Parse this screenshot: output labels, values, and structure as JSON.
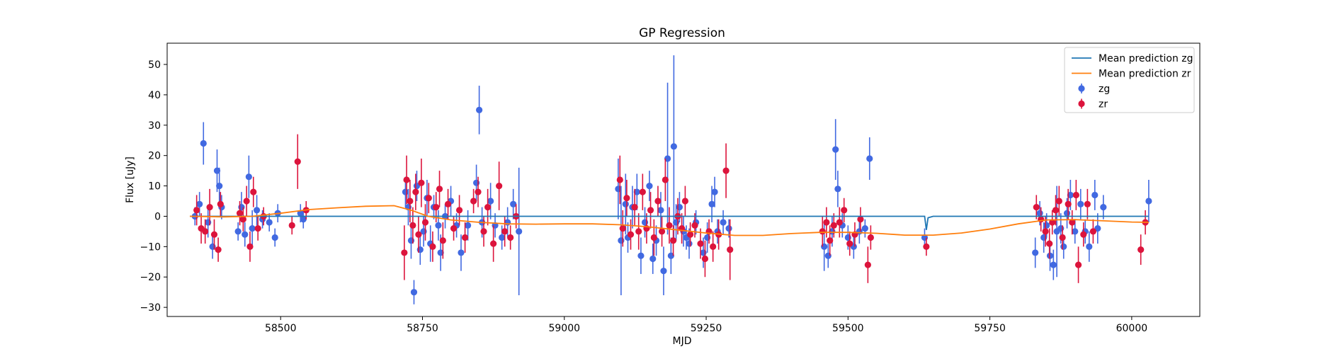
{
  "chart_data": {
    "type": "scatter",
    "title": "GP Regression",
    "xlabel": "MJD",
    "ylabel": "Flux [uJy]",
    "xlim": [
      58300,
      60120
    ],
    "ylim": [
      -33,
      57
    ],
    "x_ticks": [
      58500,
      58750,
      59000,
      59250,
      59500,
      59750,
      60000
    ],
    "y_ticks": [
      -30,
      -20,
      -10,
      0,
      10,
      20,
      30,
      40,
      50
    ],
    "grid": false,
    "legend_position": "top-right",
    "legend": [
      {
        "label": "Mean prediction zg",
        "kind": "line",
        "color": "#1f77b4"
      },
      {
        "label": "Mean prediction zr",
        "kind": "line",
        "color": "#ff7f0e"
      },
      {
        "label": "zg",
        "kind": "errorbar",
        "color": "#4169e1"
      },
      {
        "label": "zr",
        "kind": "errorbar",
        "color": "#dc143c"
      }
    ],
    "lines": [
      {
        "name": "Mean prediction zg",
        "color": "#1f77b4",
        "x": [
          58340,
          58540,
          58550,
          58760,
          59620,
          59635,
          59638,
          59641,
          59650,
          60030
        ],
        "y": [
          0,
          0,
          0,
          0,
          0,
          0,
          -4.5,
          -0.5,
          0,
          0
        ]
      },
      {
        "name": "Mean prediction zr",
        "color": "#ff7f0e",
        "x": [
          58340,
          58400,
          58450,
          58500,
          58550,
          58600,
          58650,
          58700,
          58730,
          58760,
          58800,
          58850,
          58900,
          58950,
          59000,
          59050,
          59100,
          59150,
          59200,
          59250,
          59300,
          59350,
          59400,
          59450,
          59500,
          59550,
          59600,
          59650,
          59700,
          59750,
          59800,
          59850,
          59900,
          59950,
          60000,
          60030
        ],
        "y": [
          0.0,
          -0.2,
          0.0,
          1.0,
          2.2,
          2.8,
          3.3,
          3.5,
          2.0,
          0.0,
          -1.2,
          -2.0,
          -2.5,
          -2.6,
          -2.5,
          -2.5,
          -2.8,
          -3.5,
          -4.5,
          -5.5,
          -6.3,
          -6.3,
          -5.7,
          -5.3,
          -5.3,
          -5.6,
          -6.2,
          -6.2,
          -5.5,
          -4.2,
          -2.5,
          -1.2,
          -1.1,
          -1.5,
          -1.9,
          -2.0
        ]
      }
    ],
    "series": [
      {
        "name": "zg",
        "color": "#4169e1",
        "points": [
          [
            58349,
            0,
            3
          ],
          [
            58357,
            4,
            4
          ],
          [
            58364,
            24,
            7
          ],
          [
            58372,
            -2,
            5
          ],
          [
            58380,
            -10,
            4
          ],
          [
            58388,
            15,
            7
          ],
          [
            58392,
            10,
            6
          ],
          [
            58396,
            3,
            4
          ],
          [
            58425,
            -5,
            3
          ],
          [
            58431,
            3,
            5
          ],
          [
            58437,
            -6,
            4
          ],
          [
            58444,
            13,
            7
          ],
          [
            58450,
            -4,
            6
          ],
          [
            58458,
            2,
            5
          ],
          [
            58468,
            -1,
            3
          ],
          [
            58480,
            -2,
            3
          ],
          [
            58490,
            -7,
            3
          ],
          [
            58495,
            1,
            3
          ],
          [
            58535,
            1,
            3
          ],
          [
            58540,
            -1,
            3
          ],
          [
            58720,
            8,
            5
          ],
          [
            58725,
            3,
            6
          ],
          [
            58730,
            -8,
            6
          ],
          [
            58735,
            -25,
            4
          ],
          [
            58740,
            10,
            5
          ],
          [
            58746,
            -11,
            5
          ],
          [
            58752,
            -5,
            5
          ],
          [
            58758,
            6,
            6
          ],
          [
            58764,
            -9,
            6
          ],
          [
            58770,
            3,
            4
          ],
          [
            58778,
            -3,
            5
          ],
          [
            58782,
            -12,
            6
          ],
          [
            58790,
            0,
            4
          ],
          [
            58800,
            5,
            5
          ],
          [
            58810,
            -3,
            4
          ],
          [
            58818,
            -12,
            6
          ],
          [
            58830,
            -3,
            5
          ],
          [
            58845,
            11,
            6
          ],
          [
            58850,
            35,
            8
          ],
          [
            58855,
            -2,
            5
          ],
          [
            58870,
            5,
            6
          ],
          [
            58878,
            -3,
            4
          ],
          [
            58890,
            -7,
            4
          ],
          [
            58900,
            -2,
            5
          ],
          [
            58910,
            4,
            5
          ],
          [
            58920,
            -5,
            21
          ],
          [
            59095,
            9,
            10
          ],
          [
            59100,
            -8,
            18
          ],
          [
            59108,
            4,
            10
          ],
          [
            59112,
            -7,
            5
          ],
          [
            59120,
            3,
            7
          ],
          [
            59128,
            8,
            6
          ],
          [
            59135,
            -13,
            6
          ],
          [
            59142,
            -2,
            5
          ],
          [
            59150,
            10,
            5
          ],
          [
            59156,
            -14,
            5
          ],
          [
            59162,
            -8,
            5
          ],
          [
            59170,
            2,
            6
          ],
          [
            59175,
            -18,
            8
          ],
          [
            59182,
            19,
            25
          ],
          [
            59188,
            -13,
            6
          ],
          [
            59193,
            23,
            30
          ],
          [
            59197,
            -2,
            6
          ],
          [
            59203,
            3,
            5
          ],
          [
            59210,
            -5,
            5
          ],
          [
            59215,
            -7,
            4
          ],
          [
            59220,
            -9,
            5
          ],
          [
            59232,
            -2,
            4
          ],
          [
            59245,
            -12,
            5
          ],
          [
            59252,
            -7,
            5
          ],
          [
            59260,
            4,
            6
          ],
          [
            59265,
            8,
            5
          ],
          [
            59270,
            -5,
            4
          ],
          [
            59280,
            -2,
            4
          ],
          [
            59290,
            -4,
            3
          ],
          [
            59458,
            -10,
            8
          ],
          [
            59465,
            -13,
            4
          ],
          [
            59472,
            -5,
            5
          ],
          [
            59478,
            22,
            10
          ],
          [
            59482,
            9,
            6
          ],
          [
            59490,
            -3,
            4
          ],
          [
            59500,
            -7,
            4
          ],
          [
            59510,
            -10,
            4
          ],
          [
            59520,
            -5,
            4
          ],
          [
            59530,
            -4,
            3
          ],
          [
            59538,
            19,
            7
          ],
          [
            59635,
            -7,
            3
          ],
          [
            59830,
            -12,
            5
          ],
          [
            59838,
            1,
            4
          ],
          [
            59845,
            -7,
            5
          ],
          [
            59850,
            -3,
            4
          ],
          [
            59856,
            -13,
            5
          ],
          [
            59862,
            -16,
            5
          ],
          [
            59868,
            -5,
            15
          ],
          [
            59875,
            -4,
            5
          ],
          [
            59880,
            -10,
            4
          ],
          [
            59886,
            1,
            5
          ],
          [
            59892,
            7,
            5
          ],
          [
            59900,
            -5,
            4
          ],
          [
            59910,
            4,
            5
          ],
          [
            59918,
            -5,
            4
          ],
          [
            59925,
            -10,
            5
          ],
          [
            59935,
            7,
            5
          ],
          [
            59940,
            -4,
            5
          ],
          [
            59950,
            3,
            4
          ],
          [
            60030,
            5,
            7
          ]
        ]
      },
      {
        "name": "zr",
        "color": "#dc143c",
        "points": [
          [
            58352,
            2,
            5
          ],
          [
            58360,
            -4,
            5
          ],
          [
            58367,
            -5,
            4
          ],
          [
            58375,
            3,
            6
          ],
          [
            58383,
            -6,
            5
          ],
          [
            58390,
            -11,
            4
          ],
          [
            58394,
            4,
            4
          ],
          [
            58428,
            1,
            4
          ],
          [
            58434,
            -1,
            4
          ],
          [
            58440,
            5,
            5
          ],
          [
            58446,
            -10,
            5
          ],
          [
            58452,
            8,
            5
          ],
          [
            58460,
            -4,
            4
          ],
          [
            58470,
            0,
            3
          ],
          [
            58520,
            -3,
            3
          ],
          [
            58530,
            18,
            9
          ],
          [
            58545,
            2,
            3
          ],
          [
            58718,
            -12,
            9
          ],
          [
            58722,
            12,
            8
          ],
          [
            58728,
            5,
            7
          ],
          [
            58733,
            -3,
            6
          ],
          [
            58738,
            8,
            6
          ],
          [
            58743,
            -6,
            6
          ],
          [
            58748,
            11,
            8
          ],
          [
            58755,
            -2,
            6
          ],
          [
            58761,
            6,
            5
          ],
          [
            58768,
            -10,
            5
          ],
          [
            58774,
            3,
            5
          ],
          [
            58780,
            9,
            6
          ],
          [
            58786,
            -8,
            6
          ],
          [
            58795,
            4,
            5
          ],
          [
            58805,
            -4,
            4
          ],
          [
            58815,
            2,
            5
          ],
          [
            58825,
            -7,
            5
          ],
          [
            58840,
            5,
            4
          ],
          [
            58848,
            8,
            5
          ],
          [
            58858,
            -5,
            5
          ],
          [
            58865,
            3,
            6
          ],
          [
            58875,
            -9,
            6
          ],
          [
            58885,
            10,
            8
          ],
          [
            58895,
            -5,
            5
          ],
          [
            58905,
            -7,
            4
          ],
          [
            58915,
            0,
            4
          ],
          [
            59098,
            12,
            8
          ],
          [
            59103,
            -4,
            6
          ],
          [
            59110,
            6,
            6
          ],
          [
            59117,
            -6,
            5
          ],
          [
            59124,
            3,
            6
          ],
          [
            59131,
            -5,
            6
          ],
          [
            59138,
            8,
            6
          ],
          [
            59145,
            -4,
            5
          ],
          [
            59152,
            2,
            6
          ],
          [
            59158,
            -7,
            6
          ],
          [
            59165,
            5,
            5
          ],
          [
            59172,
            -5,
            5
          ],
          [
            59178,
            12,
            7
          ],
          [
            59185,
            -3,
            6
          ],
          [
            59192,
            -8,
            5
          ],
          [
            59200,
            0,
            6
          ],
          [
            59207,
            -4,
            5
          ],
          [
            59213,
            5,
            5
          ],
          [
            59222,
            -6,
            4
          ],
          [
            59230,
            -3,
            4
          ],
          [
            59240,
            -9,
            5
          ],
          [
            59248,
            -14,
            6
          ],
          [
            59255,
            -5,
            4
          ],
          [
            59262,
            -10,
            5
          ],
          [
            59272,
            -6,
            5
          ],
          [
            59285,
            15,
            9
          ],
          [
            59292,
            -11,
            10
          ],
          [
            59455,
            -5,
            5
          ],
          [
            59462,
            -2,
            5
          ],
          [
            59468,
            -8,
            5
          ],
          [
            59475,
            -3,
            4
          ],
          [
            59485,
            -2,
            5
          ],
          [
            59493,
            2,
            4
          ],
          [
            59503,
            -9,
            4
          ],
          [
            59512,
            -6,
            4
          ],
          [
            59522,
            -1,
            4
          ],
          [
            59535,
            -16,
            6
          ],
          [
            59540,
            -7,
            4
          ],
          [
            59638,
            -10,
            3
          ],
          [
            59832,
            3,
            4
          ],
          [
            59840,
            -1,
            4
          ],
          [
            59848,
            -5,
            5
          ],
          [
            59855,
            -9,
            5
          ],
          [
            59860,
            -2,
            4
          ],
          [
            59866,
            2,
            5
          ],
          [
            59872,
            5,
            5
          ],
          [
            59878,
            -7,
            4
          ],
          [
            59888,
            4,
            5
          ],
          [
            59895,
            -2,
            4
          ],
          [
            59902,
            7,
            5
          ],
          [
            59906,
            -16,
            6
          ],
          [
            59915,
            -6,
            4
          ],
          [
            59922,
            4,
            5
          ],
          [
            59932,
            -5,
            4
          ],
          [
            60016,
            -11,
            5
          ],
          [
            60024,
            -2,
            4
          ]
        ]
      }
    ]
  }
}
